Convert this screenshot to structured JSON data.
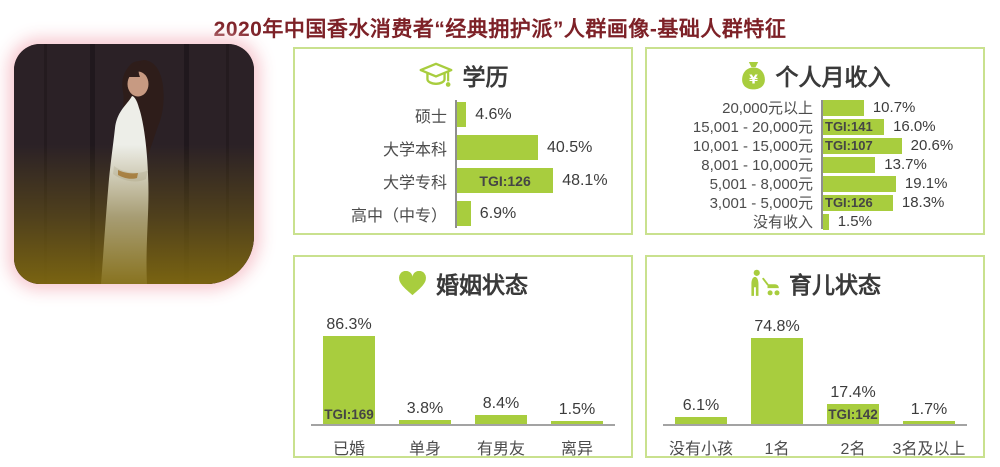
{
  "page": {
    "title": "2020年中国香水消费者“经典拥护派”人群画像-基础人群特征"
  },
  "colors": {
    "bar_green": "#a8cd3e",
    "panel_border_green": "#c9e18e",
    "title_dark_red": "#7d2127",
    "axis_gray": "#8f8f8f",
    "baseline_gray": "#a3a3a3",
    "text_gray": "#4c4c4c",
    "photo_glow_pink": "#f7c6ce"
  },
  "photo": {
    "description": "woman in white dress portrait with pink glow border"
  },
  "panels": [
    {
      "id": "education",
      "title": "学历",
      "icon": "graduation-cap-icon",
      "chart_data": {
        "type": "bar",
        "orientation": "horizontal",
        "categories": [
          "硕士",
          "大学本科",
          "大学专科",
          "高中（中专）"
        ],
        "values": [
          4.6,
          40.5,
          48.1,
          6.9
        ],
        "value_labels": [
          "4.6%",
          "40.5%",
          "48.1%",
          "6.9%"
        ],
        "tgi_labels": [
          "",
          "",
          "TGI:126",
          ""
        ],
        "xlim": [
          0,
          50
        ],
        "grid": false,
        "legend": false
      }
    },
    {
      "id": "income",
      "title": "个人月收入",
      "icon": "money-bag-icon",
      "chart_data": {
        "type": "bar",
        "orientation": "horizontal",
        "categories": [
          "20,000元以上",
          "15,001 - 20,000元",
          "10,001 - 15,000元",
          "8,001 - 10,000元",
          "5,001 - 8,000元",
          "3,001 - 5,000元",
          "没有收入"
        ],
        "values": [
          10.7,
          16.0,
          20.6,
          13.7,
          19.1,
          18.3,
          1.5
        ],
        "value_labels": [
          "10.7%",
          "16.0%",
          "20.6%",
          "13.7%",
          "19.1%",
          "18.3%",
          "1.5%"
        ],
        "tgi_labels": [
          "",
          "TGI:141",
          "TGI:107",
          "",
          "",
          "TGI:126",
          ""
        ],
        "xlim": [
          0,
          22
        ],
        "grid": false,
        "legend": false
      }
    },
    {
      "id": "marital-status",
      "title": "婚姻状态",
      "icon": "heart-icon",
      "chart_data": {
        "type": "bar",
        "orientation": "vertical",
        "categories": [
          "已婚",
          "单身",
          "有男友",
          "离异"
        ],
        "values": [
          86.3,
          3.8,
          8.4,
          1.5
        ],
        "value_labels": [
          "86.3%",
          "3.8%",
          "8.4%",
          "1.5%"
        ],
        "tgi_labels": [
          "TGI:169",
          "",
          "",
          ""
        ],
        "ylim": [
          0,
          90
        ],
        "grid": false,
        "legend": false
      }
    },
    {
      "id": "parenting-status",
      "title": "育儿状态",
      "icon": "parent-stroller-icon",
      "chart_data": {
        "type": "bar",
        "orientation": "vertical",
        "categories": [
          "没有小孩",
          "1名",
          "2名",
          "3名及以上"
        ],
        "values": [
          6.1,
          74.8,
          17.4,
          1.7
        ],
        "value_labels": [
          "6.1%",
          "74.8%",
          "17.4%",
          "1.7%"
        ],
        "tgi_labels": [
          "",
          "",
          "TGI:142",
          ""
        ],
        "ylim": [
          0,
          80
        ],
        "grid": false,
        "legend": false
      }
    }
  ]
}
